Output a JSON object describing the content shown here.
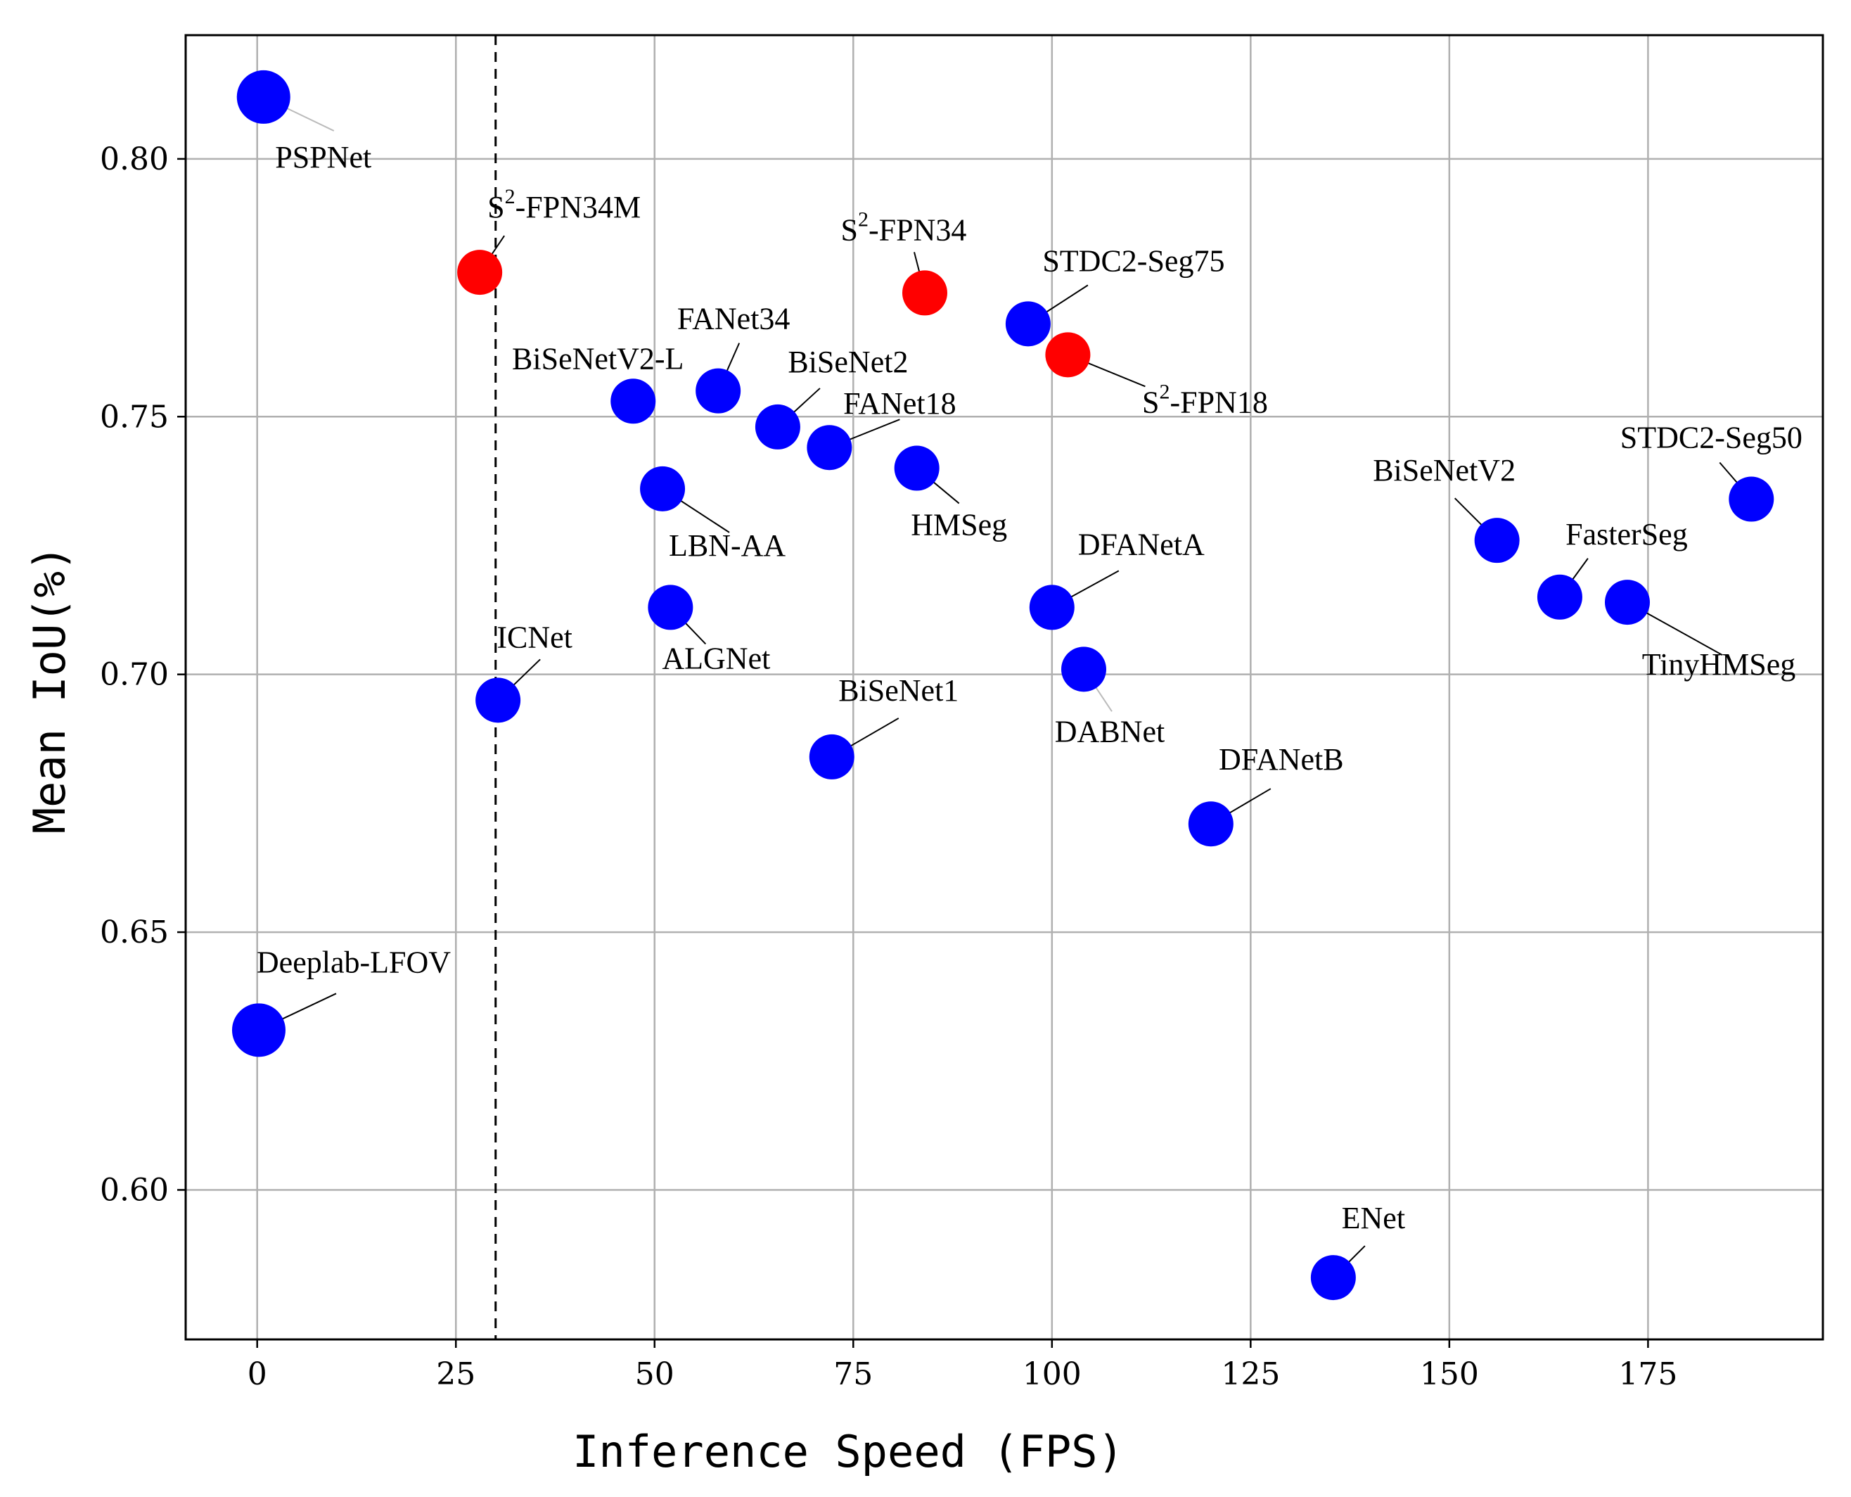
{
  "chart_data": {
    "type": "scatter",
    "xlabel": "Inference Speed (FPS)",
    "ylabel": "Mean IoU(%)",
    "xlim": [
      -9,
      197
    ],
    "ylim": [
      0.571,
      0.824
    ],
    "xticks": [
      "0",
      "25",
      "50",
      "75",
      "100",
      "125",
      "150",
      "175"
    ],
    "yticks": [
      "0.60",
      "0.65",
      "0.70",
      "0.75",
      "0.80"
    ],
    "grid": true,
    "reference_line_x": 30,
    "colors": {
      "highlight": "#ff0000",
      "baseline": "#0000ff"
    },
    "points": [
      {
        "label": "PSPNet",
        "label_sup": "",
        "x": 0.8,
        "y": 0.812,
        "highlight": false,
        "size": "large"
      },
      {
        "label": "Deeplab-LFOV",
        "label_sup": "",
        "x": 0.2,
        "y": 0.631,
        "highlight": false,
        "size": "large"
      },
      {
        "label": "-FPN34M",
        "label_sup": "2",
        "x": 28,
        "y": 0.778,
        "highlight": true,
        "size": "normal"
      },
      {
        "label": "-FPN34",
        "label_sup": "2",
        "x": 84,
        "y": 0.774,
        "highlight": true,
        "size": "normal"
      },
      {
        "label": "-FPN18",
        "label_sup": "2",
        "x": 102,
        "y": 0.762,
        "highlight": true,
        "size": "normal"
      },
      {
        "label": "STDC2-Seg75",
        "label_sup": "",
        "x": 97,
        "y": 0.768,
        "highlight": false,
        "size": "normal"
      },
      {
        "label": "BiSeNetV2-L",
        "label_sup": "",
        "x": 47.3,
        "y": 0.753,
        "highlight": false,
        "size": "normal"
      },
      {
        "label": "FANet34",
        "label_sup": "",
        "x": 58,
        "y": 0.755,
        "highlight": false,
        "size": "normal"
      },
      {
        "label": "BiSeNet2",
        "label_sup": "",
        "x": 65.5,
        "y": 0.748,
        "highlight": false,
        "size": "normal"
      },
      {
        "label": "FANet18",
        "label_sup": "",
        "x": 72,
        "y": 0.744,
        "highlight": false,
        "size": "normal"
      },
      {
        "label": "HMSeg",
        "label_sup": "",
        "x": 83,
        "y": 0.74,
        "highlight": false,
        "size": "normal"
      },
      {
        "label": "LBN-AA",
        "label_sup": "",
        "x": 51,
        "y": 0.736,
        "highlight": false,
        "size": "normal"
      },
      {
        "label": "ALGNet",
        "label_sup": "",
        "x": 52,
        "y": 0.713,
        "highlight": false,
        "size": "normal"
      },
      {
        "label": "ICNet",
        "label_sup": "",
        "x": 30.3,
        "y": 0.695,
        "highlight": false,
        "size": "normal"
      },
      {
        "label": "BiSeNet1",
        "label_sup": "",
        "x": 72.3,
        "y": 0.684,
        "highlight": false,
        "size": "normal"
      },
      {
        "label": "DFANetA",
        "label_sup": "",
        "x": 100,
        "y": 0.713,
        "highlight": false,
        "size": "normal"
      },
      {
        "label": "DABNet",
        "label_sup": "",
        "x": 104,
        "y": 0.701,
        "highlight": false,
        "size": "normal"
      },
      {
        "label": "DFANetB",
        "label_sup": "",
        "x": 120,
        "y": 0.671,
        "highlight": false,
        "size": "normal"
      },
      {
        "label": "ENet",
        "label_sup": "",
        "x": 135.4,
        "y": 0.583,
        "highlight": false,
        "size": "normal"
      },
      {
        "label": "BiSeNetV2",
        "label_sup": "",
        "x": 156,
        "y": 0.726,
        "highlight": false,
        "size": "normal"
      },
      {
        "label": "FasterSeg",
        "label_sup": "",
        "x": 163.9,
        "y": 0.715,
        "highlight": false,
        "size": "normal"
      },
      {
        "label": "TinyHMSeg",
        "label_sup": "",
        "x": 172.4,
        "y": 0.714,
        "highlight": false,
        "size": "normal"
      },
      {
        "label": "STDC2-Seg50",
        "label_sup": "",
        "x": 188,
        "y": 0.734,
        "highlight": false,
        "size": "normal"
      }
    ]
  }
}
